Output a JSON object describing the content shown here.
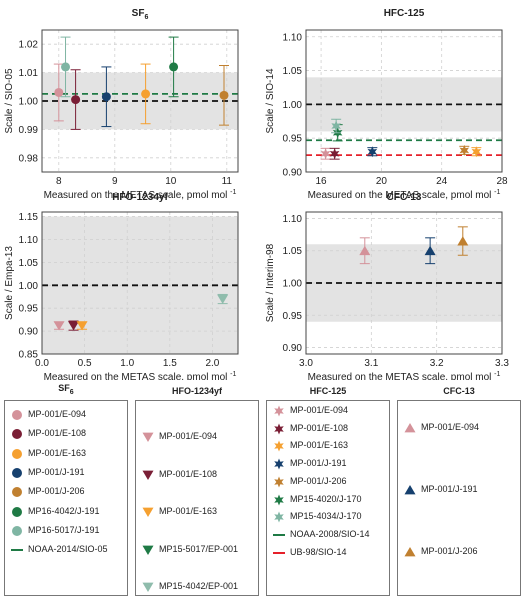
{
  "colors": {
    "grid": "#d0d0d0",
    "band": "#e3e3e3",
    "frame": "#444444",
    "E-094": "#d4929a",
    "E-108": "#7a1e35",
    "E-163": "#f5a030",
    "J-191": "#16406e",
    "J-206": "#c08030",
    "MP16-4042/J-191": "#1f7a45",
    "MP16-5017/J-191": "#7fb5a3",
    "MP15-5017/EP-001": "#1f7a45",
    "MP15-4042/EP-001": "#8fbcac",
    "MP15-4020/J-170": "#1f7a45",
    "MP15-4034/J-170": "#7fb5a3",
    "NOAA": "#1f7a45",
    "UB-98": "#e5202a"
  },
  "chart_data": [
    {
      "type": "scatter",
      "title": "SF",
      "title_subscript": "6",
      "ylabel": "Scale / SIO-05",
      "xlabel": "Measured on the METAS scale, pmol mol",
      "xlabel_sup": "-1",
      "xlim": [
        7.7,
        11.2
      ],
      "ylim": [
        0.975,
        1.025
      ],
      "xticks": [
        "8",
        "9",
        "10",
        "11"
      ],
      "xtick_values": [
        8,
        9,
        10,
        11
      ],
      "yticks": [
        "0.98",
        "0.99",
        "1.00",
        "1.01",
        "1.02"
      ],
      "ytick_values": [
        0.98,
        0.99,
        1.0,
        1.01,
        1.02
      ],
      "band": [
        0.99,
        1.01
      ],
      "ref_lines": [
        {
          "y": 1.0,
          "color": "#111111"
        },
        {
          "y": 1.0025,
          "color": "#1f7a45"
        }
      ],
      "points": [
        {
          "x": 8.0,
          "y": 1.003,
          "err": 0.01,
          "marker": "circle",
          "key": "E-094"
        },
        {
          "x": 8.3,
          "y": 1.0005,
          "err": 0.0105,
          "marker": "circle",
          "key": "E-108"
        },
        {
          "x": 8.85,
          "y": 1.0015,
          "err": 0.0105,
          "marker": "circle",
          "key": "J-191"
        },
        {
          "x": 9.55,
          "y": 1.0025,
          "err": 0.0105,
          "marker": "circle",
          "key": "E-163"
        },
        {
          "x": 10.05,
          "y": 1.012,
          "err": 0.0105,
          "marker": "circle",
          "key": "MP16-4042/J-191"
        },
        {
          "x": 10.95,
          "y": 1.002,
          "err": 0.0105,
          "marker": "circle",
          "key": "J-206"
        },
        {
          "x": 8.12,
          "y": 1.012,
          "err": 0.0105,
          "marker": "circle",
          "key": "MP16-5017/J-191"
        }
      ]
    },
    {
      "type": "scatter",
      "title": "HFC-125",
      "ylabel": "Scale / SIO-14",
      "xlabel": "Measured on the METAS scale, pmol mol",
      "xlabel_sup": "-1",
      "xlim": [
        15,
        28
      ],
      "ylim": [
        0.9,
        1.11
      ],
      "xticks": [
        "16",
        "20",
        "24",
        "28"
      ],
      "xtick_values": [
        16,
        20,
        24,
        28
      ],
      "yticks": [
        "0.90",
        "0.95",
        "1.00",
        "1.05",
        "1.10"
      ],
      "ytick_values": [
        0.9,
        0.95,
        1.0,
        1.05,
        1.1
      ],
      "band": [
        0.96,
        1.04
      ],
      "ref_lines": [
        {
          "y": 1.0,
          "color": "#111111"
        },
        {
          "y": 0.947,
          "color": "#1f7a45"
        },
        {
          "y": 0.925,
          "color": "#e5202a"
        }
      ],
      "points": [
        {
          "x": 16.3,
          "y": 0.927,
          "err": 0.008,
          "marker": "star",
          "key": "E-094"
        },
        {
          "x": 16.9,
          "y": 0.927,
          "err": 0.008,
          "marker": "star",
          "key": "E-108"
        },
        {
          "x": 17.1,
          "y": 0.958,
          "err": 0.012,
          "marker": "star",
          "key": "MP15-4020/J-170"
        },
        {
          "x": 17.0,
          "y": 0.968,
          "err": 0.01,
          "marker": "star",
          "key": "MP15-4034/J-170"
        },
        {
          "x": 19.4,
          "y": 0.93,
          "err": 0.006,
          "marker": "star",
          "key": "J-191"
        },
        {
          "x": 25.5,
          "y": 0.932,
          "err": 0.006,
          "marker": "star",
          "key": "J-206"
        },
        {
          "x": 26.3,
          "y": 0.93,
          "err": 0.006,
          "marker": "star",
          "key": "E-163"
        }
      ]
    },
    {
      "type": "scatter",
      "title": "HFO-1234yf",
      "ylabel": "Scale / Empa-13",
      "xlabel": "Measured on the METAS scale, pmol mol",
      "xlabel_sup": "-1",
      "xlim": [
        0.0,
        2.3
      ],
      "ylim": [
        0.85,
        1.16
      ],
      "xticks": [
        "0.0",
        "0.5",
        "1.0",
        "1.5",
        "2.0"
      ],
      "xtick_values": [
        0.0,
        0.5,
        1.0,
        1.5,
        2.0
      ],
      "yticks": [
        "0.85",
        "0.90",
        "0.95",
        "1.00",
        "1.05",
        "1.10",
        "1.15"
      ],
      "ytick_values": [
        0.85,
        0.9,
        0.95,
        1.0,
        1.05,
        1.1,
        1.15
      ],
      "band": [
        0.85,
        1.15
      ],
      "ref_lines": [
        {
          "y": 1.0,
          "color": "#111111"
        }
      ],
      "points": [
        {
          "x": 0.2,
          "y": 0.912,
          "err": 0.008,
          "marker": "tri-down",
          "key": "E-094"
        },
        {
          "x": 0.37,
          "y": 0.912,
          "err": 0.01,
          "marker": "tri-down",
          "key": "E-108"
        },
        {
          "x": 0.47,
          "y": 0.912,
          "err": 0.008,
          "marker": "tri-down",
          "key": "E-163"
        },
        {
          "x": 2.12,
          "y": 0.97,
          "err": 0.01,
          "marker": "tri-down",
          "key": "MP15-4042/EP-001"
        }
      ]
    },
    {
      "type": "scatter",
      "title": "CFC-13",
      "ylabel": "Scale / Interim-98",
      "xlabel": "Measured on the METAS scale, pmol mol",
      "xlabel_sup": "-1",
      "xlim": [
        3.0,
        3.3
      ],
      "ylim": [
        0.89,
        1.11
      ],
      "xticks": [
        "3.0",
        "3.1",
        "3.2",
        "3.3"
      ],
      "xtick_values": [
        3.0,
        3.1,
        3.2,
        3.3
      ],
      "yticks": [
        "0.90",
        "0.95",
        "1.00",
        "1.05",
        "1.10"
      ],
      "ytick_values": [
        0.9,
        0.95,
        1.0,
        1.05,
        1.1
      ],
      "band": [
        0.94,
        1.06
      ],
      "ref_lines": [
        {
          "y": 1.0,
          "color": "#111111"
        }
      ],
      "points": [
        {
          "x": 3.09,
          "y": 1.05,
          "err": 0.02,
          "marker": "tri-up",
          "key": "E-094"
        },
        {
          "x": 3.19,
          "y": 1.05,
          "err": 0.02,
          "marker": "tri-up",
          "key": "J-191"
        },
        {
          "x": 3.24,
          "y": 1.065,
          "err": 0.022,
          "marker": "tri-up",
          "key": "J-206"
        }
      ]
    }
  ],
  "legends": [
    {
      "title": "SF",
      "title_sub": "6",
      "items": [
        {
          "label": "MP-001/E-094",
          "marker": "circle",
          "key": "E-094"
        },
        {
          "label": "MP-001/E-108",
          "marker": "circle",
          "key": "E-108"
        },
        {
          "label": "MP-001/E-163",
          "marker": "circle",
          "key": "E-163"
        },
        {
          "label": "MP-001/J-191",
          "marker": "circle",
          "key": "J-191"
        },
        {
          "label": "MP-001/J-206",
          "marker": "circle",
          "key": "J-206"
        },
        {
          "label": "MP16-4042/J-191",
          "marker": "circle",
          "key": "MP16-4042/J-191"
        },
        {
          "label": "MP16-5017/J-191",
          "marker": "circle",
          "key": "MP16-5017/J-191"
        },
        {
          "label": "NOAA-2014/SIO-05",
          "marker": "line",
          "key": "NOAA"
        }
      ]
    },
    {
      "title": "HFO-1234yf",
      "title_sub": "",
      "items": [
        {
          "label": "MP-001/E-094",
          "marker": "tri-down",
          "key": "E-094"
        },
        {
          "label": "MP-001/E-108",
          "marker": "tri-down",
          "key": "E-108"
        },
        {
          "label": "MP-001/E-163",
          "marker": "tri-down",
          "key": "E-163"
        },
        {
          "label": "MP15-5017/EP-001",
          "marker": "tri-down",
          "key": "MP15-5017/EP-001"
        },
        {
          "label": "MP15-4042/EP-001",
          "marker": "tri-down",
          "key": "MP15-4042/EP-001"
        }
      ]
    },
    {
      "title": "HFC-125",
      "title_sub": "",
      "items": [
        {
          "label": "MP-001/E-094",
          "marker": "star",
          "key": "E-094"
        },
        {
          "label": "MP-001/E-108",
          "marker": "star",
          "key": "E-108"
        },
        {
          "label": "MP-001/E-163",
          "marker": "star",
          "key": "E-163"
        },
        {
          "label": "MP-001/J-191",
          "marker": "star",
          "key": "J-191"
        },
        {
          "label": "MP-001/J-206",
          "marker": "star",
          "key": "J-206"
        },
        {
          "label": "MP15-4020/J-170",
          "marker": "star",
          "key": "MP15-4020/J-170"
        },
        {
          "label": "MP15-4034/J-170",
          "marker": "star",
          "key": "MP15-4034/J-170"
        },
        {
          "label": "NOAA-2008/SIO-14",
          "marker": "line",
          "key": "NOAA"
        },
        {
          "label": "UB-98/SIO-14",
          "marker": "line",
          "key": "UB-98"
        }
      ]
    },
    {
      "title": "CFC-13",
      "title_sub": "",
      "items": [
        {
          "label": "MP-001/E-094",
          "marker": "tri-up",
          "key": "E-094"
        },
        {
          "label": "MP-001/J-191",
          "marker": "tri-up",
          "key": "J-191"
        },
        {
          "label": "MP-001/J-206",
          "marker": "tri-up",
          "key": "J-206"
        }
      ]
    }
  ]
}
